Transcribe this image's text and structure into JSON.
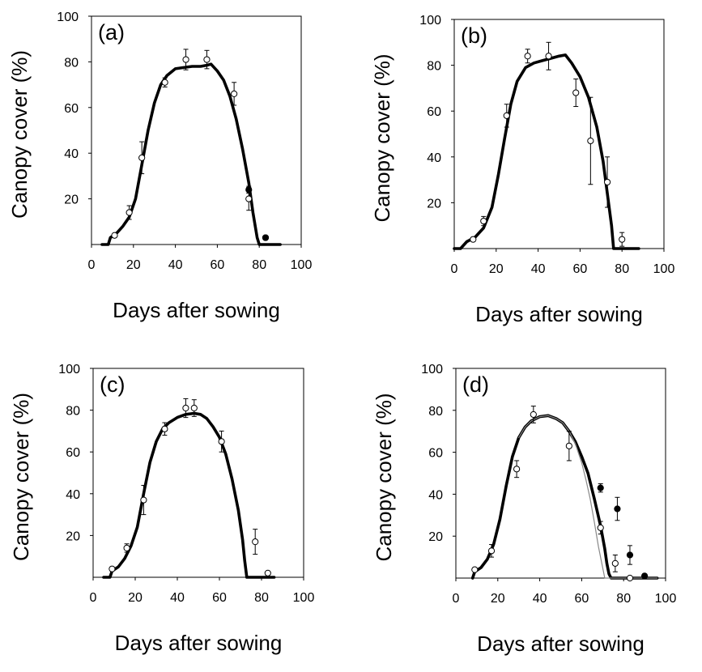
{
  "chart_data": [
    {
      "type": "line",
      "panel_label": "(a)",
      "xlabel": "Days after sowing",
      "ylabel": "Canopy cover (%)",
      "xlim": [
        0,
        100
      ],
      "ylim": [
        0,
        100
      ],
      "xticks": [
        "0",
        "20",
        "40",
        "60",
        "80",
        "100"
      ],
      "yticks": [
        "20",
        "40",
        "60",
        "80",
        "100"
      ],
      "series": [
        {
          "style": "thick",
          "color": "#000000",
          "x": [
            5,
            8,
            9,
            12,
            15,
            18,
            21,
            24,
            27,
            30,
            33,
            36,
            40,
            44,
            48,
            52,
            55,
            57,
            60,
            63,
            66,
            69,
            72,
            75,
            77,
            79,
            80,
            81,
            90
          ],
          "y": [
            0,
            0,
            3,
            5,
            8,
            12,
            20,
            35,
            50,
            62,
            70,
            74,
            77,
            77.5,
            78,
            78,
            78.5,
            79,
            76,
            72,
            65,
            55,
            42,
            27,
            14,
            3,
            0,
            0,
            0
          ]
        }
      ],
      "points": [
        {
          "fill": "open",
          "x": [
            11,
            18,
            24,
            35,
            45,
            55,
            68,
            75,
            83
          ],
          "y": [
            4,
            14,
            38,
            71,
            81,
            81,
            66,
            20,
            3
          ],
          "err": [
            0,
            3,
            7,
            2,
            4.5,
            4,
            5,
            5,
            0
          ]
        },
        {
          "fill": "filled",
          "x": [
            75,
            83
          ],
          "y": [
            24,
            3
          ],
          "err": [
            1.5,
            0
          ]
        }
      ]
    },
    {
      "type": "line",
      "panel_label": "(b)",
      "xlabel": "Days after sowing",
      "ylabel": "Canopy cover (%)",
      "xlim": [
        0,
        100
      ],
      "ylim": [
        0,
        100
      ],
      "xticks": [
        "0",
        "20",
        "40",
        "60",
        "80",
        "100"
      ],
      "yticks": [
        "20",
        "40",
        "60",
        "80",
        "100"
      ],
      "series": [
        {
          "style": "thick",
          "color": "#000000",
          "x": [
            0,
            3,
            6,
            10,
            14,
            18,
            21,
            24,
            27,
            30,
            34,
            38,
            42,
            46,
            50,
            53,
            56,
            60,
            64,
            68,
            71,
            73,
            75,
            76,
            78,
            88
          ],
          "y": [
            0,
            0,
            3,
            5,
            9,
            18,
            32,
            48,
            63,
            73,
            79,
            81,
            82,
            83,
            84,
            84.5,
            81,
            75,
            66,
            53,
            38,
            24,
            10,
            0,
            0,
            0
          ]
        }
      ],
      "points": [
        {
          "fill": "open",
          "x": [
            9,
            14,
            25,
            35,
            45,
            58,
            65,
            73,
            80
          ],
          "y": [
            4,
            12,
            58,
            84,
            84,
            68,
            47,
            29,
            4
          ],
          "err": [
            0,
            2,
            5,
            3,
            6,
            6,
            19,
            11,
            3
          ]
        }
      ]
    },
    {
      "type": "line",
      "panel_label": "(c)",
      "xlabel": "Days after sowing",
      "ylabel": "Canopy cover (%)",
      "xlim": [
        0,
        100
      ],
      "ylim": [
        0,
        100
      ],
      "xticks": [
        "0",
        "20",
        "40",
        "60",
        "80",
        "100"
      ],
      "yticks": [
        "20",
        "40",
        "60",
        "80",
        "100"
      ],
      "series": [
        {
          "style": "thick",
          "color": "#000000",
          "x": [
            5,
            8,
            9,
            12,
            15,
            18,
            21,
            24,
            27,
            30,
            33,
            36,
            40,
            44,
            48,
            51,
            54,
            57,
            60,
            63,
            66,
            69,
            71,
            72,
            73,
            74,
            86
          ],
          "y": [
            0,
            0,
            3,
            5,
            9,
            15,
            24,
            40,
            55,
            65,
            71,
            74,
            76.5,
            78,
            78.5,
            78,
            76,
            72,
            67,
            59,
            47,
            32,
            18,
            8,
            0,
            0,
            0
          ]
        }
      ],
      "points": [
        {
          "fill": "open",
          "x": [
            9,
            16,
            24,
            34,
            44,
            48,
            61,
            77,
            83
          ],
          "y": [
            4,
            14,
            37,
            71,
            81,
            81,
            65,
            17,
            2
          ],
          "err": [
            0,
            2,
            7,
            3,
            4.5,
            4,
            5,
            6,
            0
          ]
        }
      ]
    },
    {
      "type": "line",
      "panel_label": "(d)",
      "xlabel": "Days after sowing",
      "ylabel": "Canopy cover (%)",
      "xlim": [
        0,
        100
      ],
      "ylim": [
        0,
        100
      ],
      "xticks": [
        "0",
        "20",
        "40",
        "60",
        "80",
        "100"
      ],
      "yticks": [
        "20",
        "40",
        "60",
        "80",
        "100"
      ],
      "series": [
        {
          "style": "thick",
          "color": "#000000",
          "x": [
            8,
            9,
            12,
            15,
            18,
            21,
            24,
            27,
            30,
            33,
            36,
            40,
            44,
            48,
            51,
            54,
            57,
            60,
            63,
            66,
            69,
            71,
            72,
            73,
            74,
            96
          ],
          "y": [
            0,
            3,
            5,
            9,
            16,
            28,
            44,
            58,
            67,
            72,
            75,
            77,
            77.5,
            76,
            74,
            70,
            65,
            58,
            50,
            38,
            25,
            14,
            7,
            2,
            0,
            0
          ]
        },
        {
          "style": "thin",
          "color": "#888888",
          "x": [
            30,
            33,
            36,
            40,
            44,
            48,
            51,
            54,
            57,
            60,
            62,
            64,
            66,
            68,
            70,
            71,
            72,
            96
          ],
          "y": [
            67,
            72,
            75,
            77,
            77.5,
            76,
            74,
            70,
            64,
            55,
            47,
            38,
            27,
            15,
            5,
            0,
            0,
            0
          ]
        }
      ],
      "points": [
        {
          "fill": "open",
          "x": [
            9,
            17,
            29,
            37,
            54,
            69,
            76,
            83
          ],
          "y": [
            4,
            13,
            52,
            78,
            63,
            24,
            7,
            0
          ],
          "err": [
            0,
            3,
            4,
            4,
            7,
            3,
            4,
            0
          ]
        },
        {
          "fill": "filled",
          "x": [
            69,
            77,
            83,
            90
          ],
          "y": [
            43,
            33,
            11,
            1
          ],
          "err": [
            2,
            5.5,
            4.5,
            1
          ]
        }
      ]
    }
  ]
}
